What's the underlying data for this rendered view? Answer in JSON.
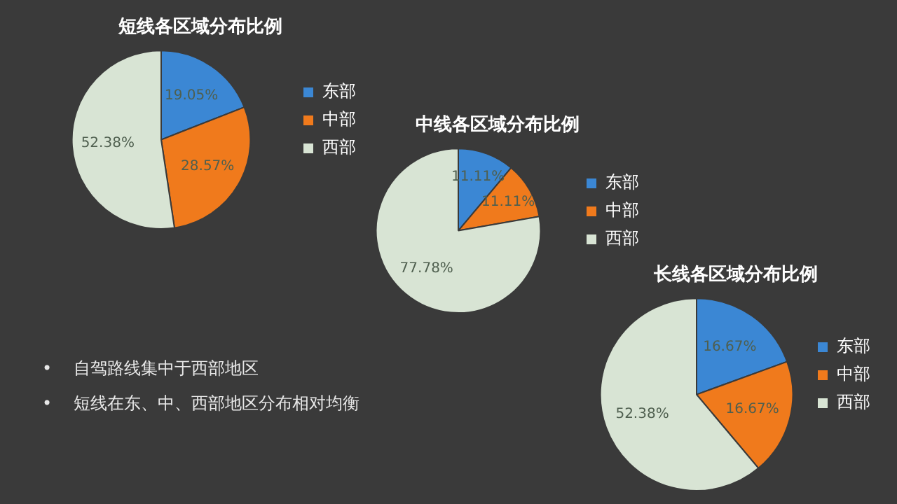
{
  "chart_data": [
    {
      "type": "pie",
      "title": "短线各区域分布比例",
      "categories": [
        "东部",
        "中部",
        "西部"
      ],
      "values": [
        19.05,
        28.57,
        52.38
      ],
      "colors": [
        "#3b87d4",
        "#f07a1c",
        "#d8e4d4"
      ],
      "value_labels": [
        "19.05%",
        "28.57%",
        "52.38%"
      ],
      "legend": "right"
    },
    {
      "type": "pie",
      "title": "中线各区域分布比例",
      "categories": [
        "东部",
        "中部",
        "西部"
      ],
      "values": [
        11.11,
        11.11,
        77.78
      ],
      "colors": [
        "#3b87d4",
        "#f07a1c",
        "#d8e4d4"
      ],
      "value_labels": [
        "11.11%",
        "11.11%",
        "77.78%"
      ],
      "legend": "right"
    },
    {
      "type": "pie",
      "title": "长线各区域分布比例",
      "categories": [
        "东部",
        "中部",
        "西部"
      ],
      "values": [
        16.67,
        16.67,
        52.38
      ],
      "colors": [
        "#3b87d4",
        "#f07a1c",
        "#d8e4d4"
      ],
      "value_labels": [
        "16.67%",
        "16.67%",
        "52.38%"
      ],
      "legend": "right"
    },
    {
      "type": "other",
      "annotations": [
        "•    自驾路线集中于西部地区",
        "•    短线在东、中、西部地区分布相对均衡"
      ]
    }
  ]
}
